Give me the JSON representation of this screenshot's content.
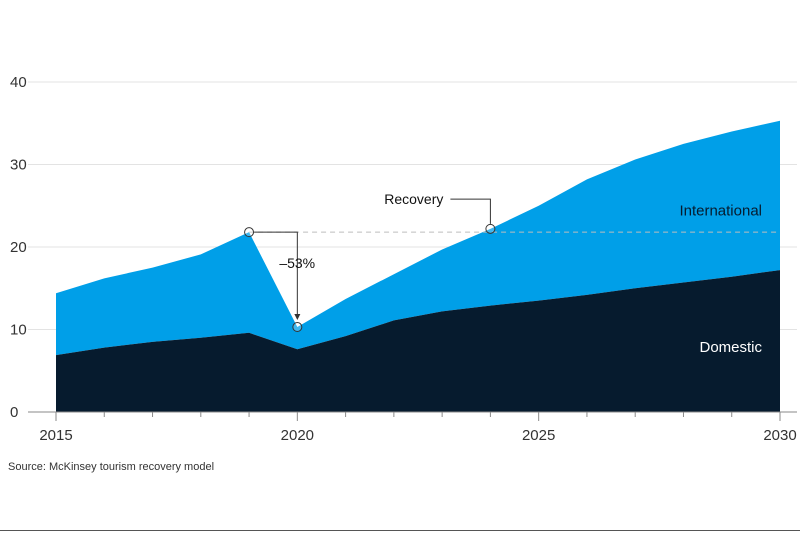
{
  "colors": {
    "domestic": "#061b2e",
    "international": "#009fe8",
    "grid": "#e3e3e3",
    "axis": "#8a8a8a",
    "recovery_line": "#bdbdbd"
  },
  "source": "Source: McKinsey tourism recovery model",
  "chart_data": {
    "type": "area",
    "stacked": true,
    "title": "",
    "xlabel": "",
    "ylabel": "",
    "xlim": [
      2015,
      2030
    ],
    "ylim": [
      0,
      40
    ],
    "x_ticks": [
      "2015",
      "2020",
      "2025",
      "2030"
    ],
    "y_ticks": [
      "0",
      "10",
      "20",
      "30",
      "40"
    ],
    "grid": true,
    "x": [
      2015,
      2016,
      2017,
      2018,
      2019,
      2020,
      2021,
      2022,
      2023,
      2024,
      2025,
      2026,
      2027,
      2028,
      2029,
      2030
    ],
    "series": [
      {
        "name": "Domestic",
        "values": [
          6.9,
          7.8,
          8.5,
          9.0,
          9.6,
          7.6,
          9.2,
          11.1,
          12.2,
          12.9,
          13.5,
          14.2,
          15.0,
          15.7,
          16.4,
          17.2
        ]
      },
      {
        "name": "International",
        "values": [
          7.5,
          8.4,
          9.0,
          10.1,
          12.2,
          2.7,
          4.5,
          5.6,
          7.5,
          9.3,
          11.5,
          14.0,
          15.6,
          16.8,
          17.6,
          18.1
        ]
      }
    ],
    "annotations": {
      "drop_label": "–53%",
      "drop_from": {
        "x": 2019,
        "y": 21.8
      },
      "drop_to": {
        "x": 2020,
        "y": 10.3
      },
      "recovery_label": "Recovery",
      "recovery_point": {
        "x": 2024,
        "y": 22.2
      },
      "recovery_level": 21.8
    }
  }
}
